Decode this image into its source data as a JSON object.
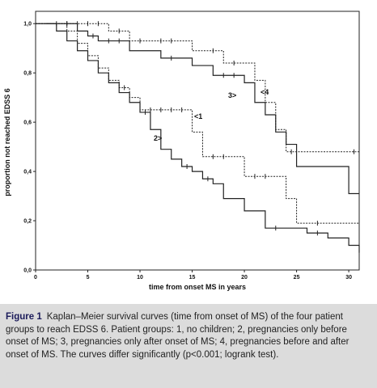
{
  "chart_data": {
    "type": "line",
    "subtype": "kaplan-meier step curves",
    "xlabel": "time from onset MS in years",
    "ylabel": "proportion not reached EDSS 6",
    "xlim": [
      0,
      31
    ],
    "ylim": [
      0,
      1.05
    ],
    "x_ticks": [
      0,
      5,
      10,
      15,
      20,
      25,
      30
    ],
    "x_tick_labels": [
      "0",
      "5",
      "10",
      "15",
      "20",
      "25",
      "30"
    ],
    "y_ticks": [
      0,
      0.2,
      0.4,
      0.6,
      0.8,
      1.0
    ],
    "y_tick_labels": [
      "0,0",
      "0,2",
      "0,4",
      "0,6",
      "0,8",
      "1,0"
    ],
    "grid": false,
    "series": [
      {
        "label": "<1",
        "style": "dotted",
        "steps": [
          [
            0,
            1.0
          ],
          [
            3,
            0.97
          ],
          [
            4,
            0.92
          ],
          [
            5,
            0.87
          ],
          [
            6,
            0.82
          ],
          [
            7,
            0.77
          ],
          [
            8,
            0.74
          ],
          [
            9,
            0.7
          ],
          [
            10,
            0.65
          ],
          [
            15,
            0.56
          ],
          [
            16,
            0.46
          ],
          [
            20,
            0.38
          ],
          [
            24,
            0.29
          ],
          [
            25,
            0.19
          ],
          [
            31,
            0.19
          ]
        ],
        "censored": [
          [
            8.5,
            0.74
          ],
          [
            11,
            0.65
          ],
          [
            12,
            0.65
          ],
          [
            13,
            0.65
          ],
          [
            14,
            0.65
          ],
          [
            17,
            0.46
          ],
          [
            18,
            0.46
          ],
          [
            21,
            0.38
          ],
          [
            22,
            0.38
          ],
          [
            27,
            0.19
          ]
        ]
      },
      {
        "label": "2>",
        "style": "solid",
        "steps": [
          [
            1,
            1.0
          ],
          [
            2,
            0.97
          ],
          [
            3,
            0.93
          ],
          [
            4,
            0.89
          ],
          [
            5,
            0.85
          ],
          [
            6,
            0.8
          ],
          [
            7,
            0.76
          ],
          [
            8,
            0.72
          ],
          [
            9,
            0.68
          ],
          [
            10,
            0.64
          ],
          [
            11,
            0.57
          ],
          [
            12,
            0.49
          ],
          [
            13,
            0.45
          ],
          [
            14,
            0.42
          ],
          [
            15,
            0.4
          ],
          [
            16,
            0.37
          ],
          [
            17,
            0.35
          ],
          [
            18,
            0.29
          ],
          [
            20,
            0.24
          ],
          [
            22,
            0.17
          ],
          [
            26,
            0.15
          ],
          [
            28,
            0.13
          ],
          [
            30,
            0.1
          ],
          [
            31,
            0.07
          ],
          [
            31,
            0.07
          ]
        ],
        "censored": [
          [
            10.5,
            0.64
          ],
          [
            14.5,
            0.42
          ],
          [
            16.5,
            0.37
          ],
          [
            23,
            0.17
          ],
          [
            27,
            0.15
          ]
        ]
      },
      {
        "label": "3>",
        "style": "solid",
        "steps": [
          [
            0,
            1.0
          ],
          [
            4,
            0.97
          ],
          [
            5,
            0.95
          ],
          [
            6,
            0.93
          ],
          [
            9,
            0.89
          ],
          [
            12,
            0.86
          ],
          [
            15,
            0.83
          ],
          [
            17,
            0.79
          ],
          [
            20,
            0.76
          ],
          [
            21,
            0.68
          ],
          [
            22,
            0.63
          ],
          [
            23,
            0.56
          ],
          [
            24,
            0.51
          ],
          [
            25,
            0.42
          ],
          [
            30,
            0.31
          ],
          [
            31,
            0.31
          ]
        ],
        "censored": [
          [
            2,
            1.0
          ],
          [
            3,
            1.0
          ],
          [
            5.5,
            0.95
          ],
          [
            7,
            0.93
          ],
          [
            8,
            0.93
          ],
          [
            13,
            0.86
          ],
          [
            18,
            0.79
          ],
          [
            19,
            0.79
          ]
        ]
      },
      {
        "label": "<4",
        "style": "dotted",
        "steps": [
          [
            0,
            1.0
          ],
          [
            7,
            0.97
          ],
          [
            9,
            0.93
          ],
          [
            15,
            0.89
          ],
          [
            18,
            0.84
          ],
          [
            21,
            0.77
          ],
          [
            22,
            0.68
          ],
          [
            23,
            0.57
          ],
          [
            24,
            0.48
          ],
          [
            31,
            0.48
          ]
        ],
        "censored": [
          [
            3,
            1.0
          ],
          [
            4,
            1.0
          ],
          [
            5,
            1.0
          ],
          [
            6,
            1.0
          ],
          [
            8,
            0.97
          ],
          [
            10,
            0.93
          ],
          [
            12,
            0.93
          ],
          [
            13,
            0.93
          ],
          [
            17,
            0.89
          ],
          [
            19,
            0.84
          ],
          [
            24.5,
            0.48
          ],
          [
            30.5,
            0.48
          ]
        ]
      }
    ]
  },
  "caption": {
    "title": "Figure 1",
    "text": "Kaplan–Meier survival curves (time from onset of MS) of the four patient groups to reach EDSS 6. Patient groups: 1, no children; 2, pregnancies only before onset of MS; 3, pregnancies only after onset of MS; 4, pregnancies before and after onset of MS. The curves differ significantly (p<0.001; logrank test)."
  }
}
